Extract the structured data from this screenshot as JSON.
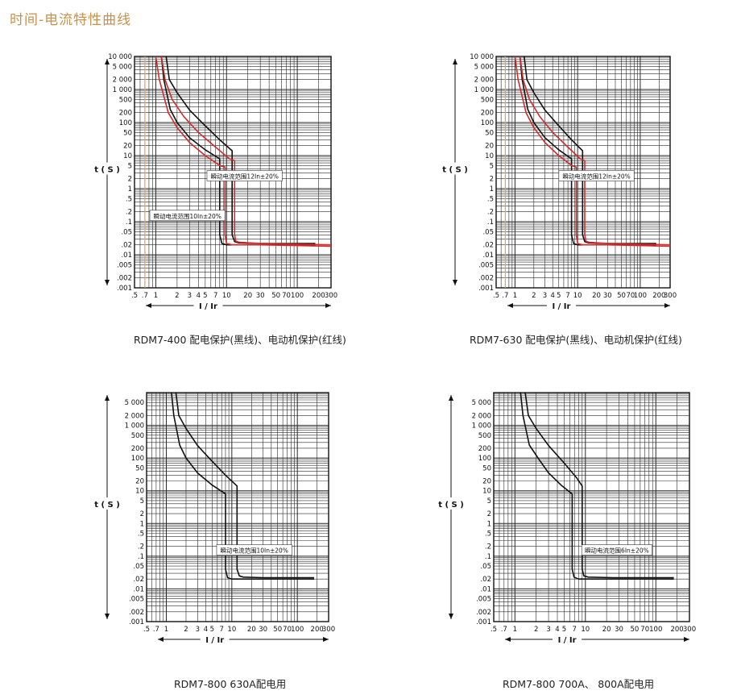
{
  "page_title": "时间-电流特性曲线",
  "chart_data": [
    {
      "type": "line",
      "caption": "RDM7-400  配电保护(黑线)、电动机保护(红线)",
      "xlabel": "I / Ir",
      "ylabel": "t ( S )",
      "x_ticks": [
        ".5",
        ".7",
        "1",
        "2",
        "3",
        "4",
        "5",
        "7",
        "10",
        "20",
        "30",
        "50",
        "70",
        "100",
        "200",
        "300"
      ],
      "y_ticks": [
        "10 000",
        "5 000",
        "2 000",
        "1 000",
        "500",
        "200",
        "100",
        "50",
        "20",
        "10",
        "5",
        "2",
        "1",
        ".5",
        ".2",
        ".1",
        ".05",
        ".02",
        ".01",
        ".005",
        ".002",
        ".001"
      ],
      "xlim": [
        0.5,
        300
      ],
      "ylim": [
        0.001,
        10000
      ],
      "x_scale": "log",
      "y_scale": "log",
      "annotations": [
        {
          "text": "瞬动电流范围12In±20%",
          "x": 18,
          "y": 2.4
        },
        {
          "text": "瞬动电流范围10In±20%",
          "x": 2.8,
          "y": 0.15
        }
      ],
      "series": [
        {
          "color": "#111111",
          "x": [
            1.2,
            1.3,
            1.6,
            2,
            3,
            5,
            8,
            8,
            8.6,
            10,
            20,
            60,
            180
          ],
          "y": [
            10000,
            2000,
            250,
            100,
            35,
            15,
            8,
            0.04,
            0.022,
            0.02,
            0.02,
            0.02,
            0.02
          ]
        },
        {
          "color": "#111111",
          "x": [
            1.4,
            1.55,
            2,
            3,
            5,
            8,
            12,
            12,
            13,
            15,
            30,
            80,
            180
          ],
          "y": [
            10000,
            2000,
            800,
            240,
            80,
            30,
            14,
            0.04,
            0.025,
            0.023,
            0.022,
            0.022,
            0.022
          ]
        },
        {
          "color": "#d42a2a",
          "x": [
            1,
            1.12,
            1.5,
            2,
            3,
            5,
            8,
            9.5,
            9.5,
            10,
            12,
            30,
            100,
            300
          ],
          "y": [
            10000,
            2000,
            200,
            70,
            25,
            10,
            5,
            4.5,
            0.04,
            0.022,
            0.02,
            0.02,
            0.019,
            0.018
          ]
        },
        {
          "color": "#d42a2a",
          "x": [
            1.2,
            1.35,
            1.7,
            2.5,
            4,
            7,
            11,
            13,
            13,
            13.5,
            15,
            30,
            100,
            300
          ],
          "y": [
            10000,
            2000,
            500,
            150,
            50,
            18,
            8,
            7,
            0.04,
            0.026,
            0.024,
            0.022,
            0.021,
            0.02
          ]
        }
      ],
      "colors": {
        "grid": "#2a2a2a",
        "ref_line": "#e8a25c"
      }
    },
    {
      "type": "line",
      "caption": "RDM7-630  配电保护(黑线)、电动机保护(红线)",
      "xlabel": "I / Ir",
      "ylabel": "t ( S )",
      "x_ticks": [
        ".5",
        ".7",
        "1",
        "2",
        "3",
        "4",
        "5",
        "7",
        "10",
        "20",
        "30",
        "50",
        "70",
        "100",
        "200",
        "300"
      ],
      "y_ticks": [
        "10 000",
        "5 000",
        "2 000",
        "1 000",
        "500",
        "200",
        "100",
        "50",
        "20",
        "10",
        "5",
        "2",
        "1",
        ".5",
        ".2",
        ".1",
        ".05",
        ".02",
        ".01",
        ".005",
        ".002",
        ".001"
      ],
      "xlim": [
        0.5,
        300
      ],
      "ylim": [
        0.001,
        10000
      ],
      "x_scale": "log",
      "y_scale": "log",
      "annotations": [
        {
          "text": "瞬动电流范围12In±20%",
          "x": 20,
          "y": 2.4
        }
      ],
      "series": [
        {
          "color": "#111111",
          "x": [
            1.2,
            1.3,
            1.6,
            2,
            3,
            5,
            8,
            8,
            8.6,
            10,
            20,
            60,
            180
          ],
          "y": [
            10000,
            2000,
            250,
            100,
            35,
            15,
            8,
            0.04,
            0.022,
            0.02,
            0.02,
            0.02,
            0.02
          ]
        },
        {
          "color": "#111111",
          "x": [
            1.4,
            1.55,
            2,
            3,
            5,
            8,
            12,
            12,
            13,
            15,
            30,
            80,
            180
          ],
          "y": [
            10000,
            2000,
            800,
            240,
            80,
            30,
            14,
            0.04,
            0.025,
            0.023,
            0.022,
            0.022,
            0.022
          ]
        },
        {
          "color": "#d42a2a",
          "x": [
            1,
            1.12,
            1.5,
            2,
            3,
            5,
            8,
            9.5,
            9.5,
            10,
            12,
            30,
            100,
            300
          ],
          "y": [
            10000,
            2000,
            200,
            70,
            25,
            10,
            5,
            4.5,
            0.04,
            0.022,
            0.02,
            0.02,
            0.019,
            0.018
          ]
        },
        {
          "color": "#d42a2a",
          "x": [
            1.2,
            1.35,
            1.7,
            2.5,
            4,
            7,
            11,
            13,
            13,
            13.5,
            15,
            30,
            100,
            300
          ],
          "y": [
            10000,
            2000,
            500,
            150,
            50,
            18,
            8,
            7,
            0.04,
            0.026,
            0.024,
            0.022,
            0.021,
            0.02
          ]
        }
      ],
      "colors": {
        "grid": "#2a2a2a",
        "ref_line": "#e8a25c"
      }
    },
    {
      "type": "line",
      "caption": "RDM7-800  630A配电用",
      "xlabel": "I / Ir",
      "ylabel": "t ( S )",
      "x_ticks": [
        ".5",
        ".7",
        "1",
        "2",
        "3",
        "4",
        "5",
        "7",
        "10",
        "20",
        "30",
        "50",
        "70",
        "100",
        "200",
        "300"
      ],
      "y_ticks": [
        "5 000",
        "2 000",
        "1 000",
        "500",
        "200",
        "100",
        "50",
        "20",
        "10",
        "5",
        "2",
        "1",
        ".5",
        ".2",
        ".1",
        ".05",
        ".02",
        ".01",
        ".005",
        ".002",
        ".001"
      ],
      "xlim": [
        0.5,
        300
      ],
      "ylim": [
        0.001,
        10000
      ],
      "x_scale": "log",
      "y_scale": "log",
      "annotations": [
        {
          "text": "瞬动电流范围10In±20%",
          "x": 22,
          "y": 0.15
        }
      ],
      "series": [
        {
          "color": "#111111",
          "x": [
            1.2,
            1.3,
            1.6,
            2,
            3,
            5,
            8,
            8,
            8.6,
            10,
            20,
            60,
            180
          ],
          "y": [
            10000,
            2000,
            250,
            100,
            35,
            15,
            8,
            0.04,
            0.022,
            0.02,
            0.02,
            0.02,
            0.02
          ]
        },
        {
          "color": "#111111",
          "x": [
            1.4,
            1.55,
            2,
            3,
            5,
            8,
            12,
            12,
            13,
            15,
            30,
            80,
            180
          ],
          "y": [
            10000,
            2000,
            800,
            240,
            80,
            30,
            14,
            0.04,
            0.025,
            0.023,
            0.022,
            0.022,
            0.022
          ]
        }
      ],
      "colors": {
        "grid": "#2a2a2a"
      }
    },
    {
      "type": "line",
      "caption": "RDM7-800  700A、 800A配电用",
      "xlabel": "I / Ir",
      "ylabel": "t ( S )",
      "x_ticks": [
        ".5",
        ".7",
        "1",
        "2",
        "3",
        "4",
        "5",
        "7",
        "10",
        "20",
        "30",
        "50",
        "70",
        "100",
        "200",
        "300"
      ],
      "y_ticks": [
        "5 000",
        "2 000",
        "1 000",
        "500",
        "200",
        "100",
        "50",
        "20",
        "10",
        "5",
        "2",
        "1",
        ".5",
        ".2",
        ".1",
        ".05",
        ".02",
        ".01",
        ".005",
        ".002",
        ".001"
      ],
      "xlim": [
        0.5,
        300
      ],
      "ylim": [
        0.001,
        10000
      ],
      "x_scale": "log",
      "y_scale": "log",
      "annotations": [
        {
          "text": "瞬动电流范围6In±20%",
          "x": 28,
          "y": 0.15
        }
      ],
      "series": [
        {
          "color": "#111111",
          "x": [
            1.2,
            1.3,
            1.6,
            2.2,
            3,
            4.5,
            6.5,
            6.5,
            6.9,
            8,
            15,
            60,
            180
          ],
          "y": [
            10000,
            2000,
            250,
            90,
            35,
            15,
            8,
            0.04,
            0.023,
            0.02,
            0.02,
            0.02,
            0.02
          ]
        },
        {
          "color": "#111111",
          "x": [
            1.4,
            1.55,
            2,
            3,
            5,
            7.5,
            9,
            9,
            9.5,
            11,
            25,
            80,
            180
          ],
          "y": [
            10000,
            2000,
            800,
            240,
            70,
            25,
            14,
            0.04,
            0.025,
            0.023,
            0.022,
            0.022,
            0.022
          ]
        }
      ],
      "colors": {
        "grid": "#2a2a2a"
      }
    }
  ]
}
